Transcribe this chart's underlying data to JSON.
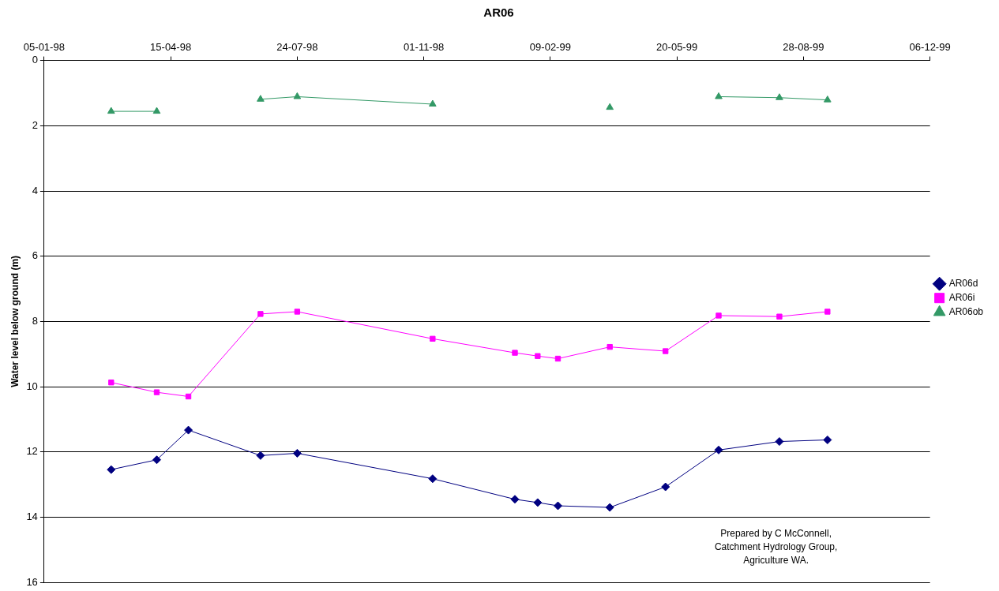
{
  "chart_data": {
    "type": "line",
    "title": "AR06",
    "ylabel": "Water level below ground (m)",
    "x": [
      "1998-02-27",
      "1998-04-04",
      "1998-04-29",
      "1998-06-25",
      "1998-07-24",
      "1998-11-08",
      "1999-01-12",
      "1999-01-30",
      "1999-02-15",
      "1999-03-28",
      "1999-05-11",
      "1999-06-22",
      "1999-08-09",
      "1999-09-16"
    ],
    "series": [
      {
        "name": "AR06d",
        "color": "#000080",
        "marker": "diamond",
        "values": [
          12.54,
          12.24,
          11.33,
          12.11,
          12.04,
          12.82,
          13.45,
          13.55,
          13.65,
          13.7,
          13.07,
          11.94,
          11.68,
          11.63
        ]
      },
      {
        "name": "AR06i",
        "color": "#ff00ff",
        "marker": "square",
        "values": [
          9.87,
          10.17,
          10.3,
          7.77,
          7.7,
          8.53,
          8.96,
          9.06,
          9.14,
          8.78,
          8.91,
          7.82,
          7.85,
          7.7
        ]
      },
      {
        "name": "AR06ob",
        "color": "#339966",
        "marker": "triangle",
        "values": [
          1.56,
          1.56,
          null,
          1.19,
          1.11,
          1.34,
          null,
          null,
          null,
          1.44,
          null,
          1.11,
          1.14,
          1.21
        ]
      }
    ],
    "xlim": [
      "1998-01-05",
      "1999-12-06"
    ],
    "xticks": [
      {
        "value": "1998-01-05",
        "label": "05-01-98"
      },
      {
        "value": "1998-04-15",
        "label": "15-04-98"
      },
      {
        "value": "1998-07-24",
        "label": "24-07-98"
      },
      {
        "value": "1998-11-01",
        "label": "01-11-98"
      },
      {
        "value": "1999-02-09",
        "label": "09-02-99"
      },
      {
        "value": "1999-05-20",
        "label": "20-05-99"
      },
      {
        "value": "1999-08-28",
        "label": "28-08-99"
      },
      {
        "value": "1999-12-06",
        "label": "06-12-99"
      }
    ],
    "ylim": [
      16,
      0
    ],
    "yticks": [
      0,
      2,
      4,
      6,
      8,
      10,
      12,
      14,
      16
    ],
    "grid": "y",
    "legend": "right",
    "line_style": "solid",
    "annotations": [
      "Prepared by C McConnell, Catchment Hydrology Group, Agriculture WA."
    ]
  }
}
